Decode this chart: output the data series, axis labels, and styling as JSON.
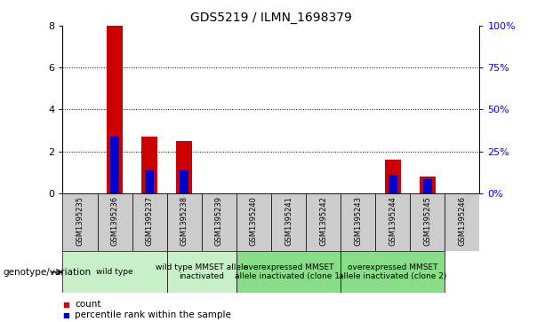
{
  "title": "GDS5219 / ILMN_1698379",
  "categories": [
    "GSM1395235",
    "GSM1395236",
    "GSM1395237",
    "GSM1395238",
    "GSM1395239",
    "GSM1395240",
    "GSM1395241",
    "GSM1395242",
    "GSM1395243",
    "GSM1395244",
    "GSM1395245",
    "GSM1395246"
  ],
  "red_values": [
    0,
    8.0,
    2.7,
    2.5,
    0,
    0,
    0,
    0,
    0,
    1.6,
    0.8,
    0
  ],
  "blue_values": [
    0,
    2.7,
    1.1,
    1.1,
    0,
    0,
    0,
    0,
    0,
    0.9,
    0.65,
    0
  ],
  "ylim_left": [
    0,
    8
  ],
  "ylim_right": [
    0,
    100
  ],
  "yticks_left": [
    0,
    2,
    4,
    6,
    8
  ],
  "yticks_right": [
    0,
    25,
    50,
    75,
    100
  ],
  "ytick_labels_right": [
    "0%",
    "25%",
    "50%",
    "75%",
    "100%"
  ],
  "group_spans": [
    [
      0,
      3,
      "wild type",
      "#c8f0c8"
    ],
    [
      3,
      5,
      "wild type MMSET allele\ninactivated",
      "#c8f0c8"
    ],
    [
      5,
      8,
      "overexpressed MMSET\nallele inactivated (clone 1)",
      "#88dd88"
    ],
    [
      8,
      11,
      "overexpressed MMSET\nallele inactivated (clone 2)",
      "#88dd88"
    ]
  ],
  "genotype_label": "genotype/variation",
  "legend_count_label": "count",
  "legend_percentile_label": "percentile rank within the sample",
  "red_color": "#cc0000",
  "blue_color": "#0000cc",
  "bar_width": 0.45,
  "blue_bar_width": 0.25,
  "tick_bg_color": "#cccccc",
  "title_fontsize": 10,
  "yticklabel_fontsize": 8,
  "xticklabel_fontsize": 6,
  "group_fontsize": 6.5,
  "legend_fontsize": 7.5,
  "genotype_fontsize": 7.5
}
